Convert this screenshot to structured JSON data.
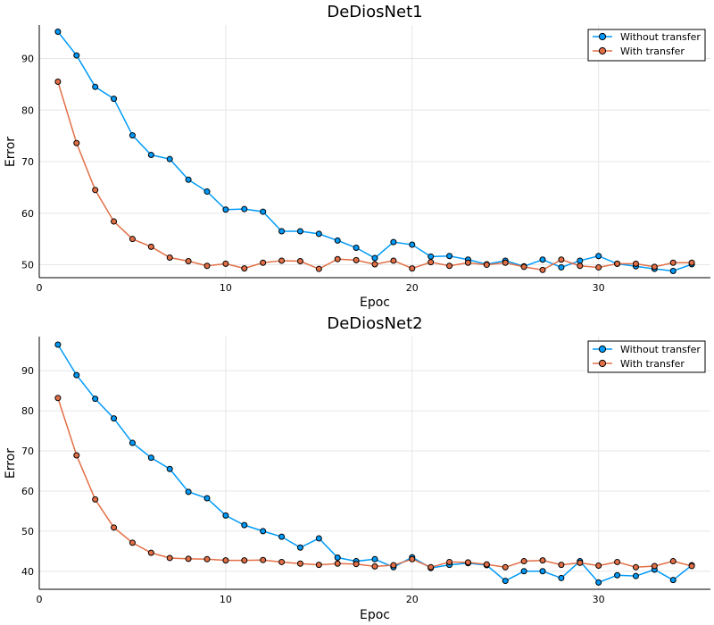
{
  "colors": {
    "without": "#009af9",
    "with": "#e26f46"
  },
  "chart_data": [
    {
      "type": "line",
      "title": "DeDiosNet1",
      "xlabel": "Epoc",
      "ylabel": "Error",
      "xlim": [
        0,
        36
      ],
      "ylim": [
        47.5,
        96.5
      ],
      "xticks": [
        "0",
        "10",
        "20",
        "30"
      ],
      "yticks": [
        "50",
        "60",
        "70",
        "80",
        "90"
      ],
      "grid": true,
      "legend_position": "top-right",
      "x": [
        1,
        2,
        3,
        4,
        5,
        6,
        7,
        8,
        9,
        10,
        11,
        12,
        13,
        14,
        15,
        16,
        17,
        18,
        19,
        20,
        21,
        22,
        23,
        24,
        25,
        26,
        27,
        28,
        29,
        30,
        31,
        32,
        33,
        34,
        35
      ],
      "series": [
        {
          "name": "Without transfer",
          "values": [
            95.2,
            90.6,
            84.5,
            82.2,
            75.1,
            71.3,
            70.5,
            66.5,
            64.2,
            60.7,
            60.8,
            60.3,
            56.5,
            56.5,
            56.0,
            54.7,
            53.3,
            51.3,
            54.4,
            53.9,
            51.6,
            51.7,
            51.0,
            50.1,
            50.8,
            49.7,
            51.0,
            49.5,
            50.8,
            51.7,
            50.2,
            49.7,
            49.2,
            48.8,
            50.1
          ]
        },
        {
          "name": "With transfer",
          "values": [
            85.5,
            73.6,
            64.5,
            58.4,
            55.0,
            53.5,
            51.4,
            50.7,
            49.8,
            50.2,
            49.3,
            50.4,
            50.8,
            50.7,
            49.2,
            51.1,
            50.9,
            50.1,
            50.8,
            49.3,
            50.5,
            49.8,
            50.4,
            50.0,
            50.4,
            49.6,
            49.0,
            51.0,
            49.8,
            49.5,
            50.2,
            50.2,
            49.6,
            50.4,
            50.4
          ]
        }
      ]
    },
    {
      "type": "line",
      "title": "DeDiosNet2",
      "xlabel": "Epoc",
      "ylabel": "Error",
      "xlim": [
        0,
        36
      ],
      "ylim": [
        35.5,
        98.5
      ],
      "xticks": [
        "0",
        "10",
        "20",
        "30"
      ],
      "yticks": [
        "40",
        "50",
        "60",
        "70",
        "80",
        "90"
      ],
      "grid": true,
      "legend_position": "top-right",
      "x": [
        1,
        2,
        3,
        4,
        5,
        6,
        7,
        8,
        9,
        10,
        11,
        12,
        13,
        14,
        15,
        16,
        17,
        18,
        19,
        20,
        21,
        22,
        23,
        24,
        25,
        26,
        27,
        28,
        29,
        30,
        31,
        32,
        33,
        34,
        35
      ],
      "series": [
        {
          "name": "Without transfer",
          "values": [
            96.5,
            88.9,
            83.0,
            78.1,
            72.0,
            68.3,
            65.5,
            59.8,
            58.2,
            53.9,
            51.5,
            50.0,
            48.6,
            45.9,
            48.2,
            43.4,
            42.5,
            43.0,
            41.0,
            43.5,
            40.8,
            41.6,
            42.0,
            41.5,
            37.6,
            40.0,
            40.0,
            38.3,
            42.5,
            37.2,
            39.0,
            38.8,
            40.4,
            37.8,
            41.5
          ]
        },
        {
          "name": "With transfer",
          "values": [
            83.2,
            68.9,
            57.9,
            50.9,
            47.1,
            44.6,
            43.3,
            43.1,
            43.0,
            42.7,
            42.7,
            42.8,
            42.3,
            41.9,
            41.6,
            41.9,
            41.8,
            41.2,
            41.5,
            43.0,
            41.0,
            42.3,
            42.2,
            41.7,
            41.0,
            42.5,
            42.7,
            41.6,
            42.1,
            41.4,
            42.3,
            41.0,
            41.3,
            42.5,
            41.3
          ]
        }
      ]
    }
  ]
}
